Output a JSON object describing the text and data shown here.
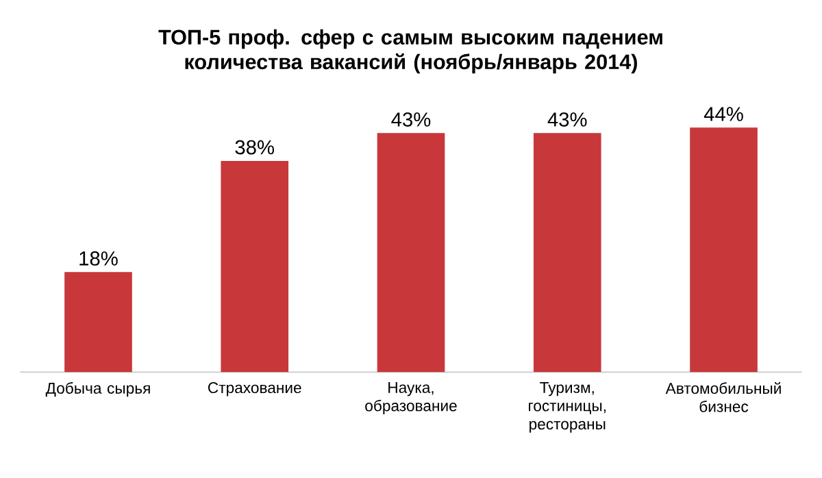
{
  "chart_data": {
    "type": "bar",
    "title": "ТОП-5 проф. сфер с самым высоким падением количества вакансий (ноябрь/январь 2014)",
    "categories": [
      "Добыча сырья",
      "Страхование",
      "Наука, образование",
      "Туризм, гостиницы, рестораны",
      "Автомобильный бизнес"
    ],
    "values": [
      18,
      38,
      43,
      43,
      44
    ],
    "value_labels": [
      "18%",
      "38%",
      "43%",
      "43%",
      "44%"
    ],
    "color": "#c8383a"
  }
}
